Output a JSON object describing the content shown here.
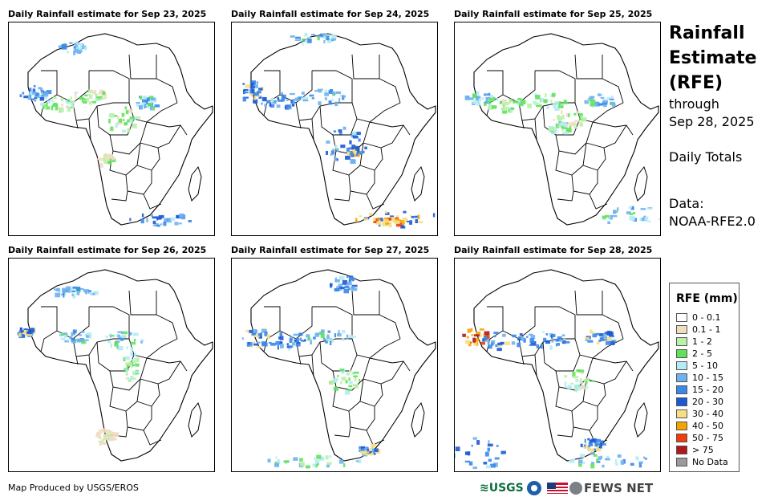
{
  "panels": [
    {
      "title": "Daily Rainfall estimate for Sep 23, 2025"
    },
    {
      "title": "Daily Rainfall estimate for Sep 24, 2025"
    },
    {
      "title": "Daily Rainfall estimate for Sep 25, 2025"
    },
    {
      "title": "Daily Rainfall estimate for Sep 26, 2025"
    },
    {
      "title": "Daily Rainfall estimate for Sep 27, 2025"
    },
    {
      "title": "Daily Rainfall estimate for Sep 28, 2025"
    }
  ],
  "header": {
    "line1": "Rainfall",
    "line2": "Estimate",
    "line3": "(RFE)",
    "through": "through",
    "date": "Sep 28, 2025",
    "totals": "Daily Totals",
    "data_label": "Data:",
    "data_source": "NOAA-RFE2.0"
  },
  "legend": {
    "title": "RFE (mm)",
    "items": [
      {
        "label": "0 - 0.1",
        "color": "#ffffff"
      },
      {
        "label": "0.1 - 1",
        "color": "#f1dcc2"
      },
      {
        "label": "1 - 2",
        "color": "#b9f2a9"
      },
      {
        "label": "2 - 5",
        "color": "#5fe25a"
      },
      {
        "label": "5 - 10",
        "color": "#b3ecf5"
      },
      {
        "label": "10 - 15",
        "color": "#6fb1ee"
      },
      {
        "label": "15 - 20",
        "color": "#3a88e8"
      },
      {
        "label": "20 - 30",
        "color": "#1b59d6"
      },
      {
        "label": "30 - 40",
        "color": "#f7df86"
      },
      {
        "label": "40 - 50",
        "color": "#f5a300"
      },
      {
        "label": "50 - 75",
        "color": "#f23c0a"
      },
      {
        "label": "> 75",
        "color": "#b01919"
      },
      {
        "label": "No Data",
        "color": "#9a9a9a"
      }
    ]
  },
  "footer": {
    "credit": "Map Produced by USGS/EROS",
    "usgs": "USGS",
    "fews": "FEWS NET"
  }
}
